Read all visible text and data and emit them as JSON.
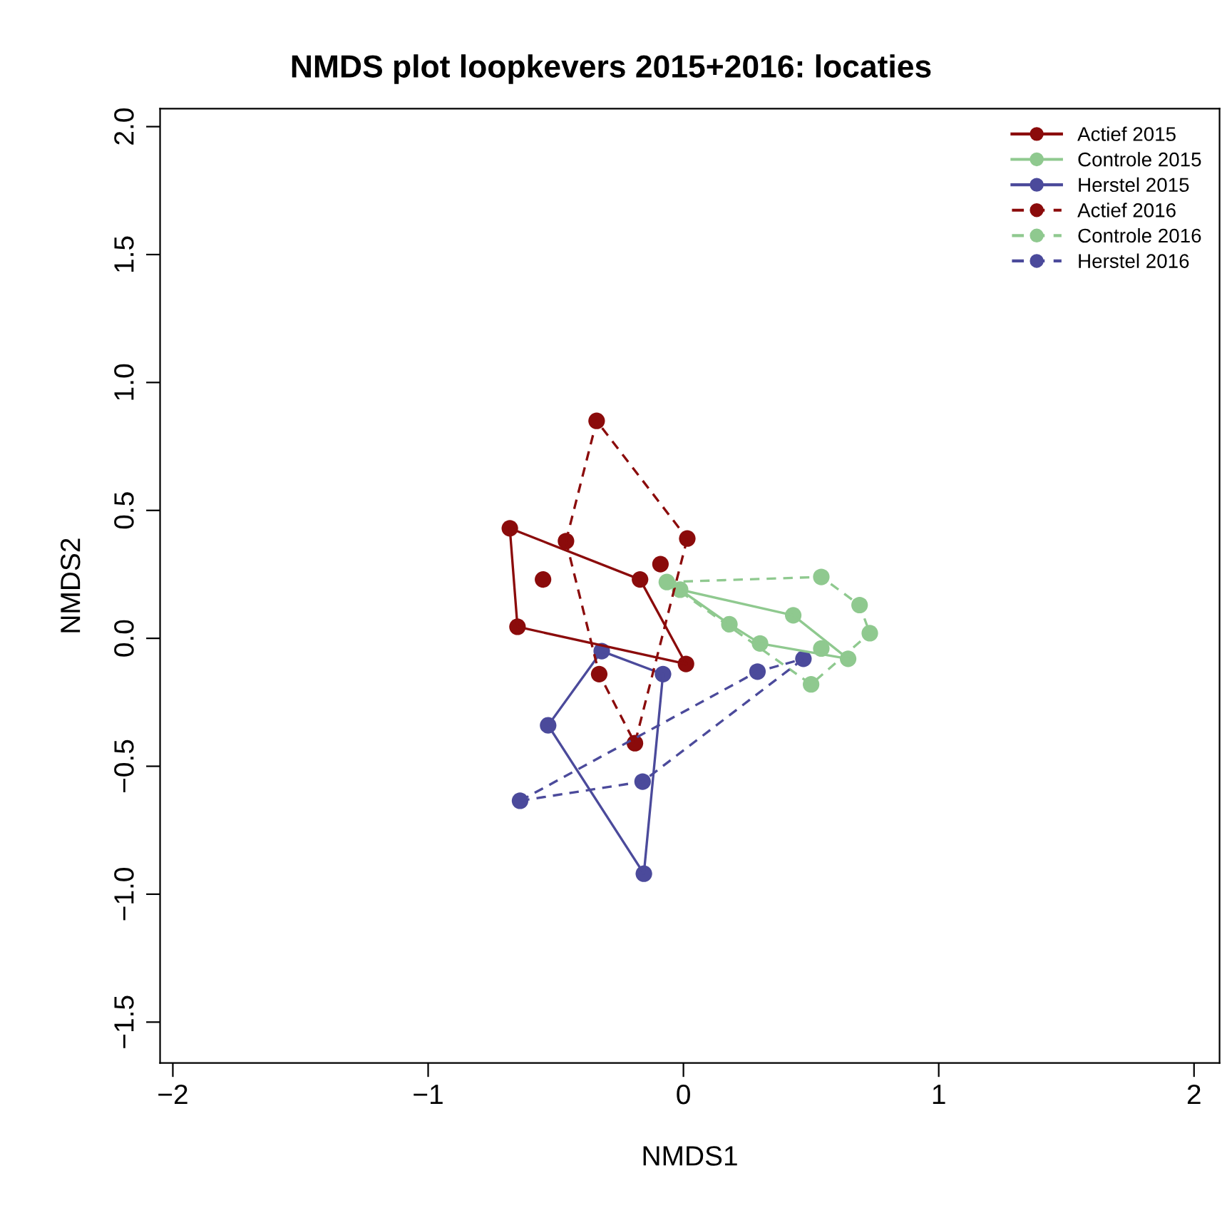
{
  "chart_data": {
    "type": "scatter",
    "title": "NMDS plot loopkevers 2015+2016: locaties",
    "xlabel": "NMDS1",
    "ylabel": "NMDS2",
    "xlim": [
      -2.05,
      2.1
    ],
    "ylim": [
      -1.66,
      2.07
    ],
    "xticks": [
      {
        "value": -2,
        "label": "−2"
      },
      {
        "value": -1,
        "label": "−1"
      },
      0,
      1,
      2
    ],
    "yticks": [
      {
        "value": -1.5,
        "label": "−1.5"
      },
      {
        "value": -1.0,
        "label": "−1.0"
      },
      {
        "value": -0.5,
        "label": "−0.5"
      },
      {
        "value": 0.0,
        "label": "0.0"
      },
      {
        "value": 0.5,
        "label": "0.5"
      },
      {
        "value": 1.0,
        "label": "1.0"
      },
      {
        "value": 1.5,
        "label": "1.5"
      },
      {
        "value": 2.0,
        "label": "2.0"
      }
    ],
    "grid": false,
    "legend": "top right",
    "marker": "circle",
    "series": [
      {
        "name": "Actief 2015",
        "color": "#8b0b0b",
        "line_style": "solid",
        "x": [
          -0.68,
          -0.17,
          0.01,
          -0.65,
          -0.55
        ],
        "values": [
          0.43,
          0.23,
          -0.1,
          0.045,
          0.23
        ]
      },
      {
        "name": "Controle 2015",
        "color": "#8fc98f",
        "line_style": "solid",
        "x": [
          -0.013,
          0.18,
          0.3,
          0.43,
          0.54,
          0.645
        ],
        "values": [
          0.19,
          0.055,
          -0.02,
          0.09,
          -0.04,
          -0.08
        ]
      },
      {
        "name": "Herstel 2015",
        "color": "#4b4a9b",
        "line_style": "solid",
        "x": [
          -0.32,
          -0.08,
          -0.155,
          -0.53
        ],
        "values": [
          -0.05,
          -0.14,
          -0.92,
          -0.34
        ]
      },
      {
        "name": "Actief 2016",
        "color": "#8b0b0b",
        "line_style": "dashed",
        "x": [
          -0.34,
          0.015,
          -0.19,
          -0.33,
          -0.46,
          -0.09
        ],
        "values": [
          0.85,
          0.39,
          -0.41,
          -0.14,
          0.38,
          0.29
        ]
      },
      {
        "name": "Controle 2016",
        "color": "#8fc98f",
        "line_style": "dashed",
        "x": [
          -0.065,
          0.54,
          0.69,
          0.73,
          0.5
        ],
        "values": [
          0.22,
          0.24,
          0.13,
          0.02,
          -0.18
        ]
      },
      {
        "name": "Herstel 2016",
        "color": "#4b4a9b",
        "line_style": "dashed",
        "x": [
          -0.64,
          -0.16,
          0.47,
          0.29
        ],
        "values": [
          -0.635,
          -0.56,
          -0.08,
          -0.13
        ]
      },
      {
        "type": "line",
        "color": "#8b0b0b",
        "line_style": "solid",
        "marker": "none",
        "x": [
          -0.68,
          -0.17,
          0.01
        ],
        "values": [
          0.43,
          0.23,
          -0.1
        ]
      },
      {
        "type": "line",
        "color": "#8b0b0b",
        "line_style": "solid",
        "marker": "none",
        "x": [
          -0.68,
          -0.65,
          0.01
        ],
        "values": [
          0.43,
          0.045,
          -0.1
        ]
      },
      {
        "type": "line",
        "color": "#8fc98f",
        "line_style": "solid",
        "marker": "none",
        "x": [
          -0.013,
          0.43,
          0.645
        ],
        "values": [
          0.19,
          0.09,
          -0.08
        ]
      },
      {
        "type": "line",
        "color": "#8fc98f",
        "line_style": "solid",
        "marker": "none",
        "x": [
          -0.013,
          0.18,
          0.3,
          0.645
        ],
        "values": [
          0.19,
          0.055,
          -0.02,
          -0.08
        ]
      },
      {
        "type": "line",
        "color": "#4b4a9b",
        "line_style": "solid",
        "marker": "none",
        "x": [
          -0.53,
          -0.32,
          -0.08
        ],
        "values": [
          -0.34,
          -0.05,
          -0.14
        ]
      },
      {
        "type": "line",
        "color": "#4b4a9b",
        "line_style": "solid",
        "marker": "none",
        "x": [
          -0.53,
          -0.155,
          -0.08
        ],
        "values": [
          -0.34,
          -0.92,
          -0.14
        ]
      },
      {
        "type": "line",
        "color": "#8b0b0b",
        "line_style": "dashed",
        "marker": "none",
        "x": [
          -0.46,
          -0.34,
          0.015
        ],
        "values": [
          0.38,
          0.85,
          0.39
        ]
      },
      {
        "type": "line",
        "color": "#8b0b0b",
        "line_style": "dashed",
        "marker": "none",
        "x": [
          -0.46,
          -0.33,
          -0.19,
          0.015
        ],
        "values": [
          0.38,
          -0.14,
          -0.41,
          0.39
        ]
      },
      {
        "type": "line",
        "color": "#8fc98f",
        "line_style": "dashed",
        "marker": "none",
        "x": [
          -0.065,
          0.54,
          0.69,
          0.73
        ],
        "values": [
          0.22,
          0.24,
          0.13,
          0.02
        ]
      },
      {
        "type": "line",
        "color": "#8fc98f",
        "line_style": "dashed",
        "marker": "none",
        "x": [
          -0.065,
          0.5,
          0.73
        ],
        "values": [
          0.22,
          -0.18,
          0.02
        ]
      },
      {
        "type": "line",
        "color": "#4b4a9b",
        "line_style": "dashed",
        "marker": "none",
        "x": [
          -0.64,
          0.29,
          0.47
        ],
        "values": [
          -0.635,
          -0.13,
          -0.08
        ]
      },
      {
        "type": "line",
        "color": "#4b4a9b",
        "line_style": "dashed",
        "marker": "none",
        "x": [
          -0.64,
          -0.16,
          0.47
        ],
        "values": [
          -0.635,
          -0.56,
          -0.08
        ]
      }
    ]
  }
}
